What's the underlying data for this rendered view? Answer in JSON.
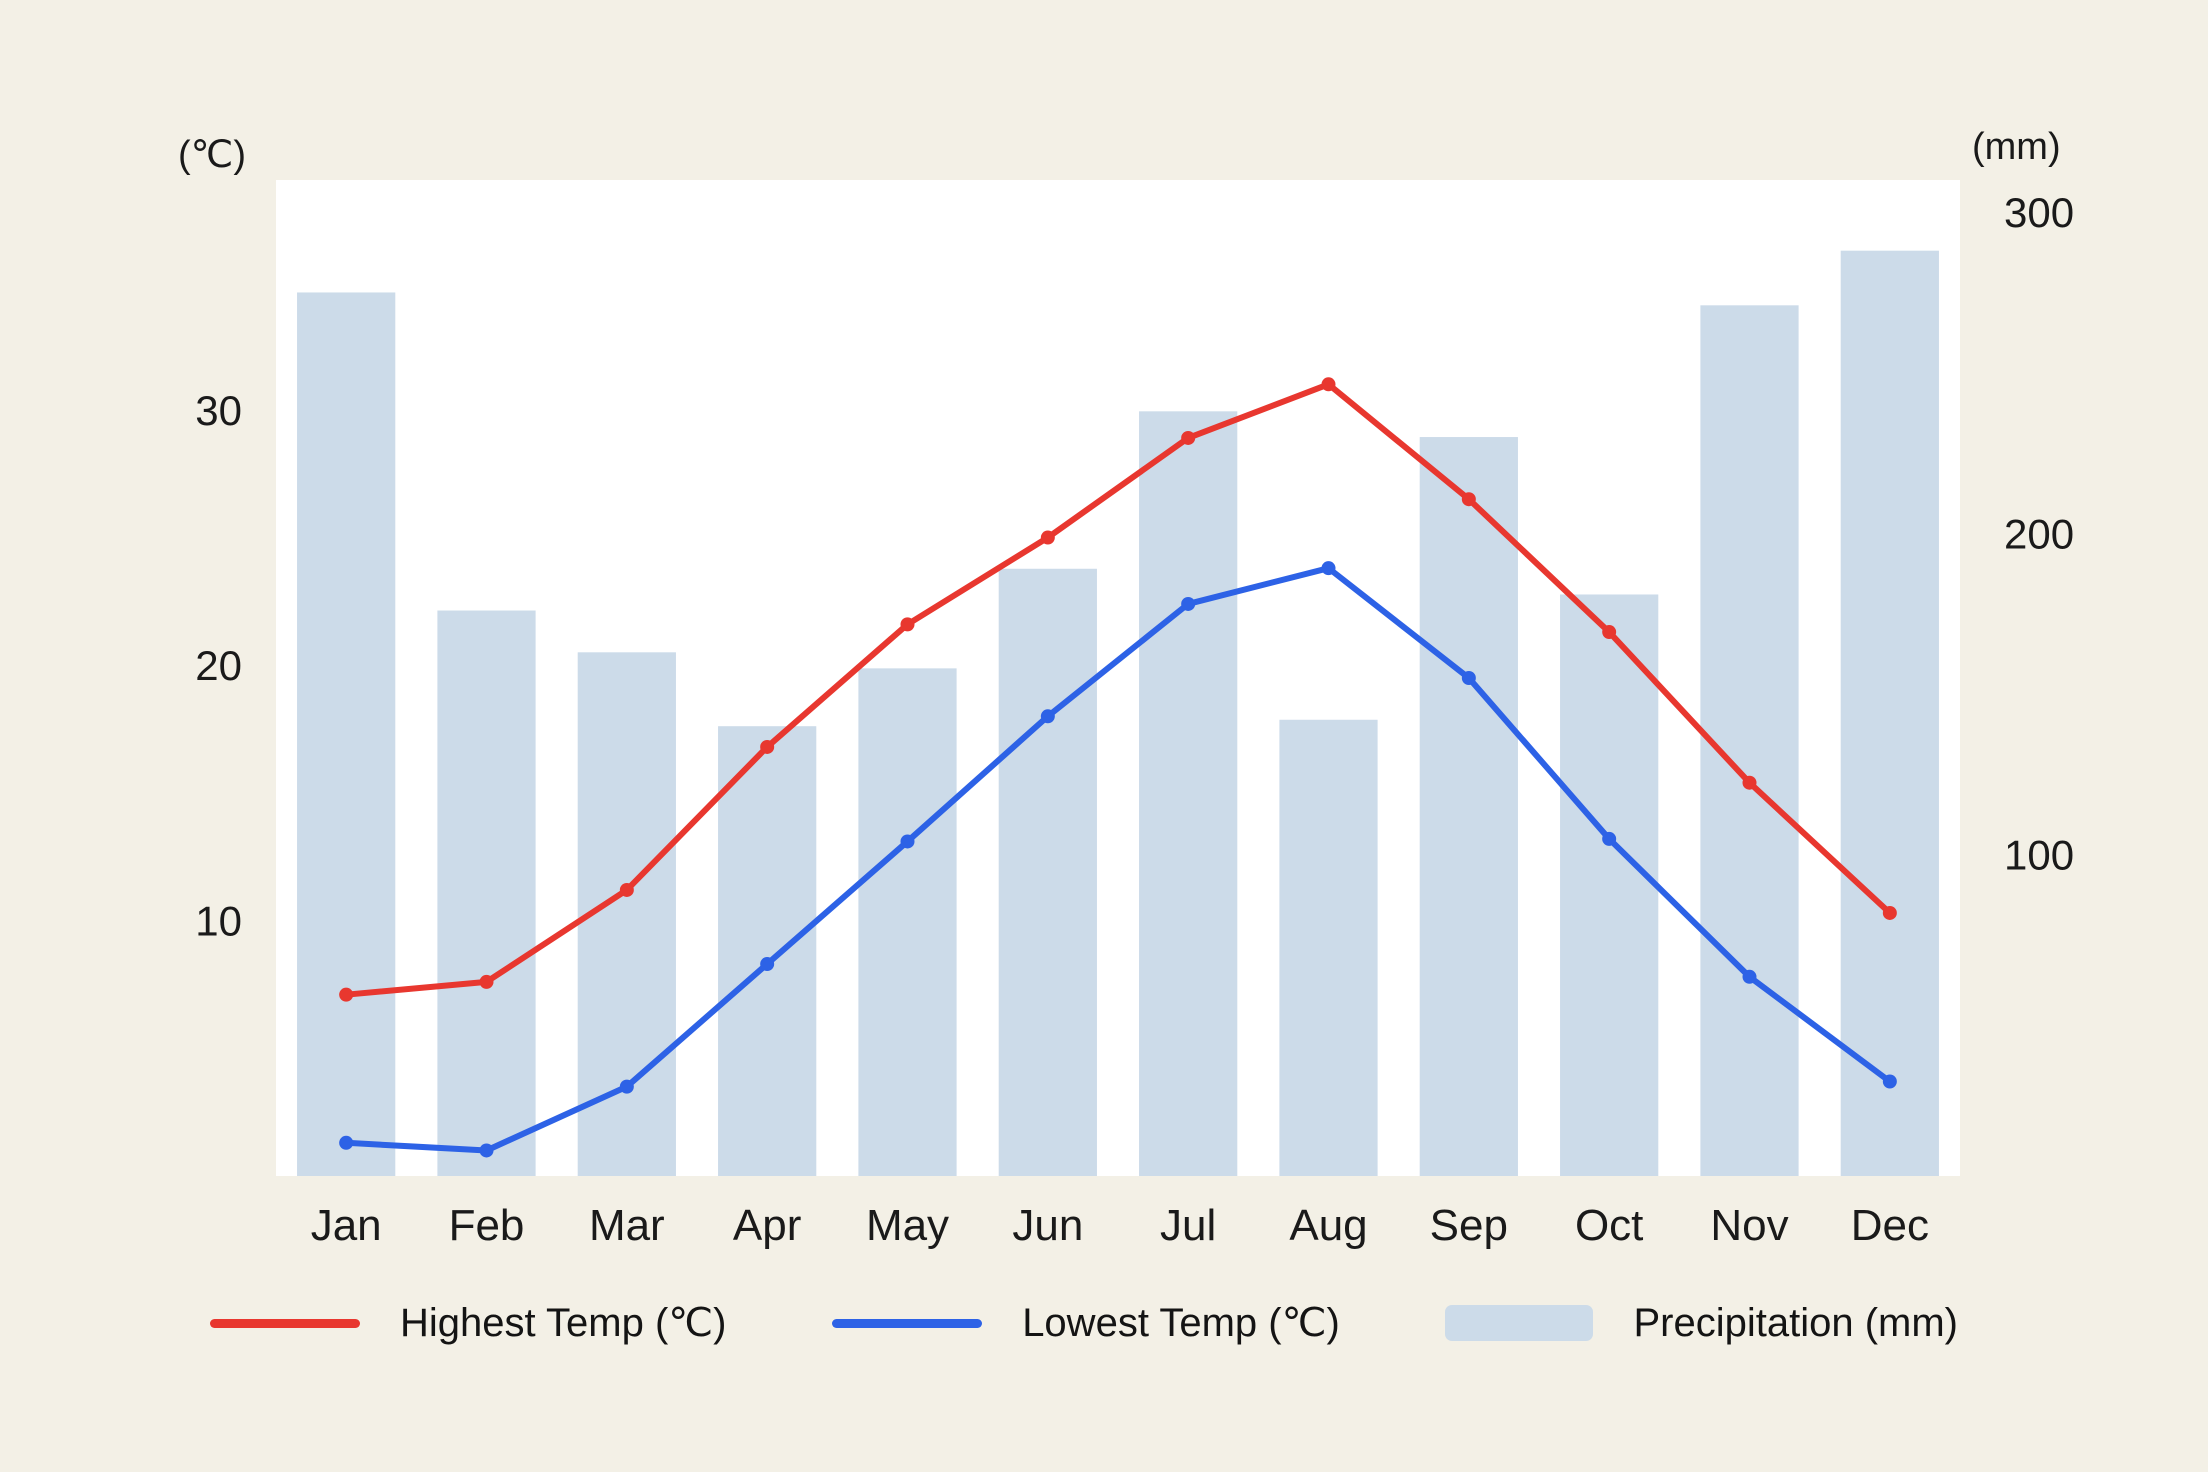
{
  "chart_data": {
    "type": "combo",
    "categories": [
      "Jan",
      "Feb",
      "Mar",
      "Apr",
      "May",
      "Jun",
      "Jul",
      "Aug",
      "Sep",
      "Oct",
      "Nov",
      "Dec"
    ],
    "series": [
      {
        "name": "Highest Temp (℃)",
        "type": "line",
        "axis": "left",
        "color": "#e8372f",
        "values": [
          7.1,
          7.6,
          11.2,
          16.8,
          21.6,
          25.0,
          28.9,
          31.0,
          26.5,
          21.3,
          15.4,
          10.3
        ]
      },
      {
        "name": "Lowest Temp (℃)",
        "type": "line",
        "axis": "left",
        "color": "#2d62e6",
        "values": [
          1.3,
          1.0,
          3.5,
          8.3,
          13.1,
          18.0,
          22.4,
          23.8,
          19.5,
          13.2,
          7.8,
          3.7
        ]
      },
      {
        "name": "Precipitation (mm)",
        "type": "bar",
        "axis": "right",
        "color": "#ccdbe9",
        "values": [
          275,
          176,
          163,
          140,
          158,
          189,
          238,
          142,
          230,
          181,
          271,
          288
        ]
      }
    ],
    "left_axis": {
      "unit": "(℃)",
      "ticks": [
        10,
        20,
        30
      ],
      "range": [
        0,
        39
      ]
    },
    "right_axis": {
      "unit": "(mm)",
      "ticks": [
        100,
        200,
        300
      ],
      "range": [
        0,
        310
      ]
    },
    "grid": false,
    "legend_position": "bottom",
    "background": "#f3f0e6",
    "plot_background": "#ffffff",
    "text_color": "#1a1a1a"
  }
}
